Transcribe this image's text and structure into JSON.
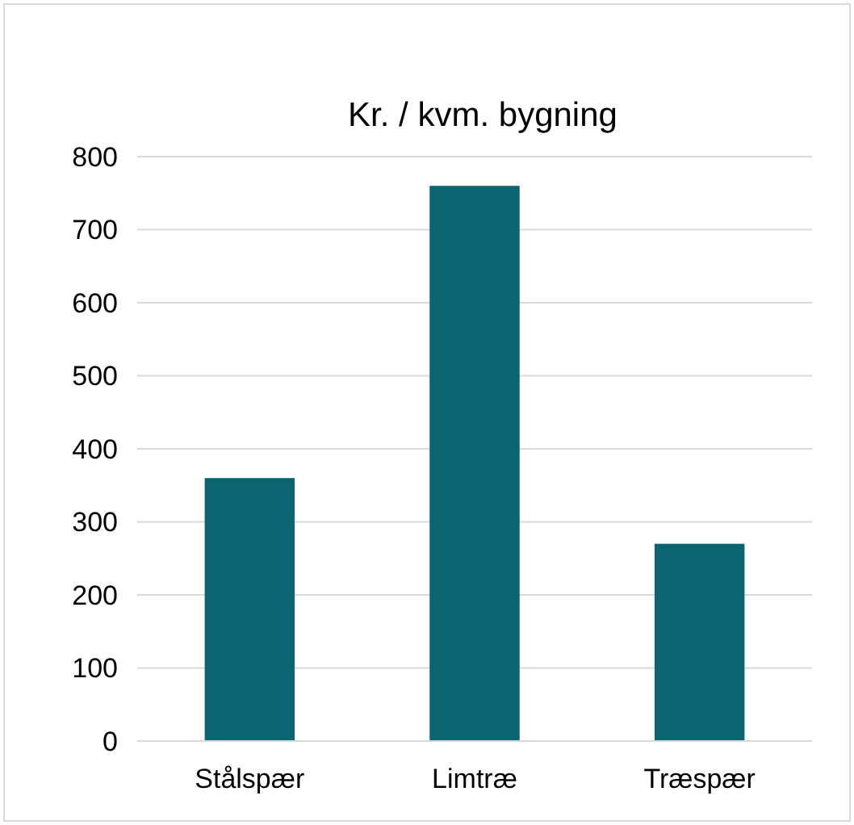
{
  "chart_data": {
    "type": "bar",
    "title": "Kr. / kvm. bygning",
    "categories": [
      "Stålspær",
      "Limtræ",
      "Træspær"
    ],
    "values": [
      360,
      760,
      270
    ],
    "color": "#0a6570",
    "ylim": [
      0,
      800
    ],
    "yticks": [
      0,
      100,
      200,
      300,
      400,
      500,
      600,
      700,
      800
    ],
    "grid": "y"
  }
}
